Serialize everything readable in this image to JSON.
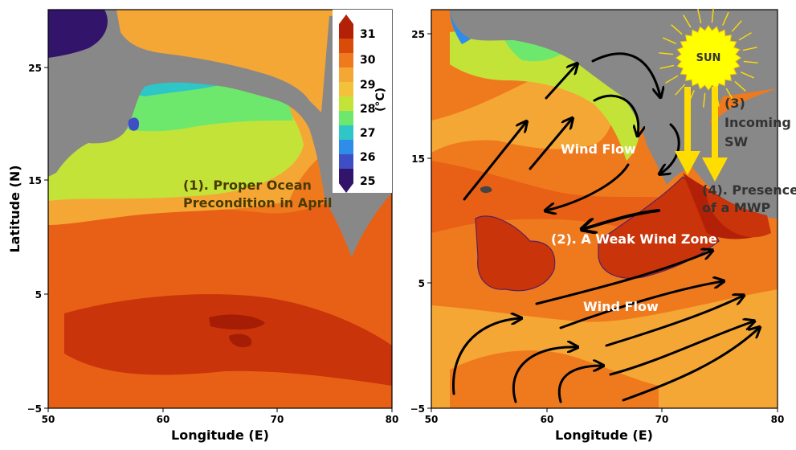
{
  "left_map": {
    "xlabel": "Longitude (E)",
    "ylabel": "Latitude (N)",
    "xticks": [
      "50",
      "60",
      "70",
      "80"
    ],
    "yticks": [
      "25",
      "15",
      "5",
      "−5"
    ],
    "annotation_line1": "(1). Proper Ocean",
    "annotation_line2": "Precondition in April"
  },
  "right_map": {
    "xlabel": "Longitude (E)",
    "xticks": [
      "50",
      "60",
      "70",
      "80"
    ],
    "yticks": [
      "25",
      "15",
      "5",
      "−5"
    ],
    "wind_flow_top": "Wind Flow",
    "wind_flow_bottom": "Wind Flow",
    "weak_wind_zone": "(2). A Weak Wind Zone",
    "sun": "SUN",
    "incoming_sw_1": "(3)",
    "incoming_sw_2": "Incoming",
    "incoming_sw_3": "SW",
    "mwp_1": "(4). Presence",
    "mwp_2": "of a MWP"
  },
  "colorbar": {
    "unit": "(°C)",
    "ticks": [
      "31",
      "30",
      "29",
      "28",
      "27",
      "26",
      "25"
    ],
    "colors": [
      "#b22107",
      "#d94b08",
      "#ef7a1e",
      "#f5a735",
      "#f2c23c",
      "#c4e339",
      "#6ee86c",
      "#2ec6c6",
      "#2f8ce8",
      "#3e4fc6",
      "#32146a"
    ]
  },
  "colors": {
    "land": "#888888",
    "annotation_dark": "#4a3a00",
    "annotation_light": "#ffffff",
    "arrow": "#000000",
    "sun": "#ffff00",
    "sw_arrow": "#ffdd00"
  }
}
